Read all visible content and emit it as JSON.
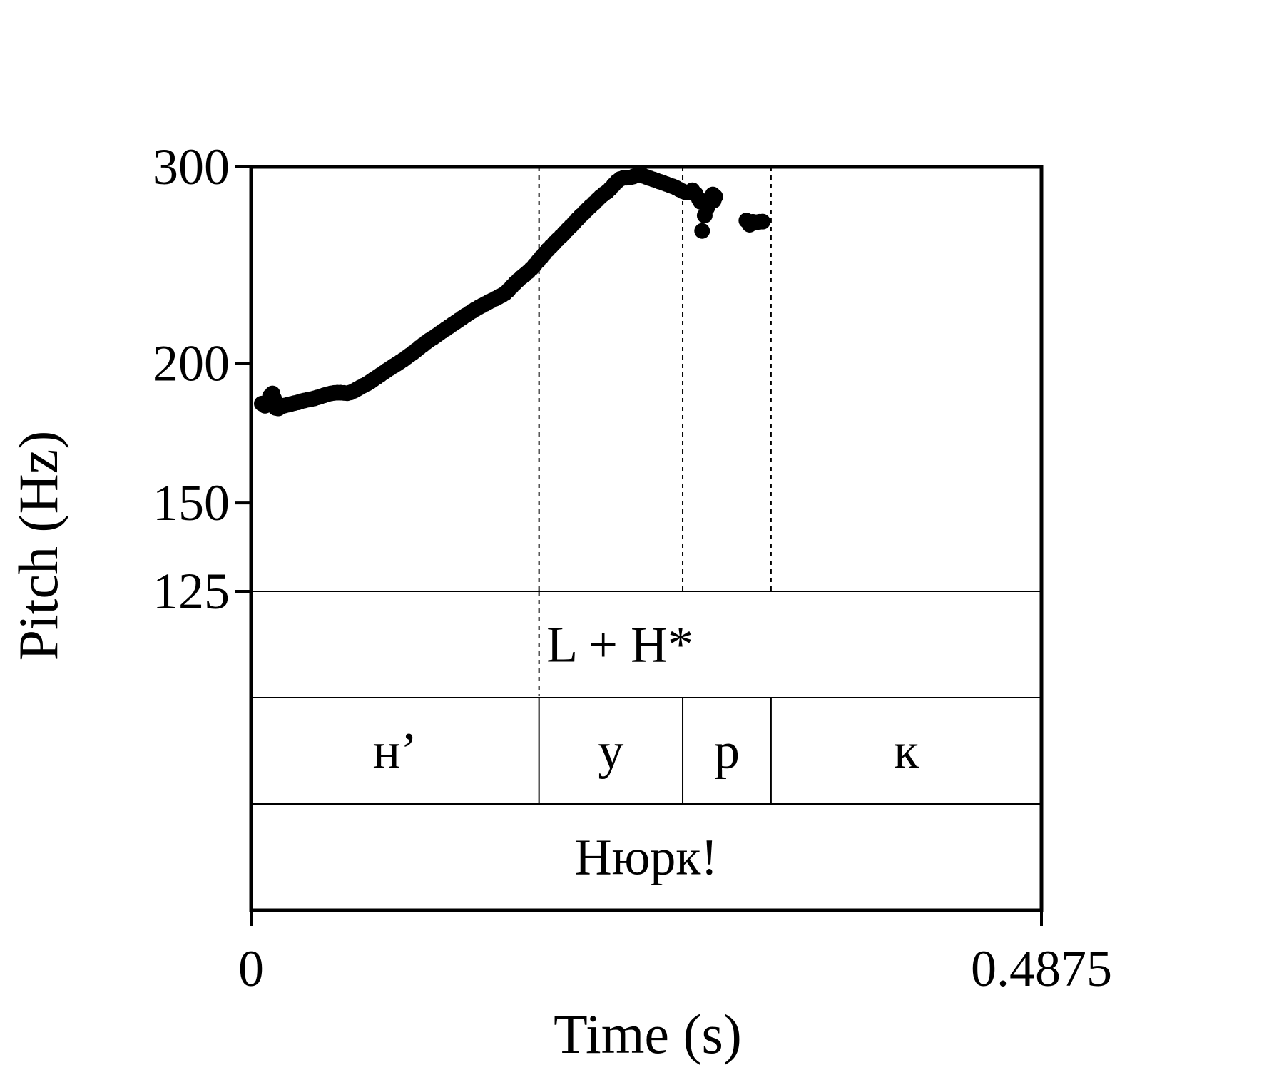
{
  "chart_data": {
    "type": "scatter",
    "title": "",
    "xlabel": "Time (s)",
    "ylabel": "Pitch (Hz)",
    "xlim": [
      0,
      0.4875
    ],
    "ylim": [
      125,
      300
    ],
    "y_scale": "log",
    "x_tick_labels": [
      "0",
      "0.4875"
    ],
    "y_ticks": [
      {
        "value": 300,
        "label": "300"
      },
      {
        "value": 200,
        "label": "200"
      },
      {
        "value": 150,
        "label": "150"
      },
      {
        "value": 125,
        "label": "125"
      }
    ],
    "boundaries": [
      0.1776,
      0.2662,
      0.3207
    ],
    "series": [
      {
        "points": [
          [
            0.0066,
            184.1
          ],
          [
            0.0086,
            183.3
          ],
          [
            0.0101,
            183.6
          ],
          [
            0.0117,
            187.0
          ],
          [
            0.0132,
            188.0
          ],
          [
            0.0142,
            186.0
          ],
          [
            0.0152,
            182.5
          ],
          [
            0.0168,
            182.3
          ],
          [
            0.0188,
            183.0
          ],
          [
            0.0208,
            183.4
          ],
          [
            0.0228,
            183.7
          ],
          [
            0.0248,
            184.0
          ],
          [
            0.0268,
            184.3
          ],
          [
            0.0289,
            184.6
          ],
          [
            0.0309,
            185.0
          ],
          [
            0.0329,
            185.3
          ],
          [
            0.035,
            185.6
          ],
          [
            0.037,
            185.8
          ],
          [
            0.039,
            186.1
          ],
          [
            0.041,
            186.5
          ],
          [
            0.0431,
            186.9
          ],
          [
            0.0451,
            187.3
          ],
          [
            0.0471,
            187.7
          ],
          [
            0.0492,
            188.0
          ],
          [
            0.0512,
            188.2
          ],
          [
            0.0532,
            188.3
          ],
          [
            0.0552,
            188.3
          ],
          [
            0.0573,
            188.2
          ],
          [
            0.0593,
            188.1
          ],
          [
            0.0613,
            188.4
          ],
          [
            0.0634,
            189.0
          ],
          [
            0.0654,
            189.7
          ],
          [
            0.0674,
            190.4
          ],
          [
            0.0694,
            191.1
          ],
          [
            0.0715,
            191.8
          ],
          [
            0.0735,
            192.6
          ],
          [
            0.0755,
            193.5
          ],
          [
            0.0776,
            194.4
          ],
          [
            0.0796,
            195.3
          ],
          [
            0.0816,
            196.2
          ],
          [
            0.0836,
            197.1
          ],
          [
            0.0857,
            198.0
          ],
          [
            0.0877,
            198.9
          ],
          [
            0.0897,
            199.7
          ],
          [
            0.0918,
            200.6
          ],
          [
            0.0938,
            201.5
          ],
          [
            0.0958,
            202.5
          ],
          [
            0.0979,
            203.5
          ],
          [
            0.0999,
            204.5
          ],
          [
            0.1019,
            205.6
          ],
          [
            0.1039,
            206.7
          ],
          [
            0.106,
            207.8
          ],
          [
            0.108,
            208.9
          ],
          [
            0.11,
            209.9
          ],
          [
            0.1121,
            210.8
          ],
          [
            0.1141,
            211.8
          ],
          [
            0.1161,
            212.8
          ],
          [
            0.1181,
            213.8
          ],
          [
            0.1202,
            214.8
          ],
          [
            0.1222,
            215.8
          ],
          [
            0.1242,
            216.8
          ],
          [
            0.1263,
            217.8
          ],
          [
            0.1283,
            218.8
          ],
          [
            0.1303,
            219.8
          ],
          [
            0.1323,
            220.8
          ],
          [
            0.1344,
            221.8
          ],
          [
            0.1364,
            222.8
          ],
          [
            0.1384,
            223.7
          ],
          [
            0.1405,
            224.6
          ],
          [
            0.1425,
            225.4
          ],
          [
            0.1445,
            226.2
          ],
          [
            0.1465,
            227.0
          ],
          [
            0.1486,
            227.8
          ],
          [
            0.1506,
            228.6
          ],
          [
            0.1526,
            229.4
          ],
          [
            0.1547,
            230.2
          ],
          [
            0.1567,
            231.2
          ],
          [
            0.1587,
            232.6
          ],
          [
            0.1607,
            234.3
          ],
          [
            0.1628,
            236.0
          ],
          [
            0.1648,
            237.5
          ],
          [
            0.1668,
            238.9
          ],
          [
            0.1689,
            240.2
          ],
          [
            0.1709,
            241.6
          ],
          [
            0.1729,
            243.2
          ],
          [
            0.1749,
            245.0
          ],
          [
            0.177,
            247.0
          ],
          [
            0.179,
            249.0
          ],
          [
            0.181,
            251.0
          ],
          [
            0.1831,
            252.9
          ],
          [
            0.1851,
            254.7
          ],
          [
            0.1871,
            256.5
          ],
          [
            0.1891,
            258.2
          ],
          [
            0.1912,
            260.0
          ],
          [
            0.1932,
            261.8
          ],
          [
            0.1952,
            263.6
          ],
          [
            0.1973,
            265.5
          ],
          [
            0.1993,
            267.4
          ],
          [
            0.2013,
            269.3
          ],
          [
            0.2033,
            271.2
          ],
          [
            0.2054,
            273.0
          ],
          [
            0.2074,
            274.8
          ],
          [
            0.2094,
            276.6
          ],
          [
            0.2115,
            278.4
          ],
          [
            0.2135,
            280.2
          ],
          [
            0.2155,
            282.0
          ],
          [
            0.2175,
            283.6
          ],
          [
            0.2196,
            285.0
          ],
          [
            0.2216,
            286.8
          ],
          [
            0.2236,
            289.0
          ],
          [
            0.2257,
            291.1
          ],
          [
            0.2277,
            292.6
          ],
          [
            0.2297,
            293.3
          ],
          [
            0.2317,
            293.4
          ],
          [
            0.2338,
            293.5
          ],
          [
            0.2358,
            294.1
          ],
          [
            0.2378,
            294.7
          ],
          [
            0.2399,
            294.9
          ],
          [
            0.2419,
            294.5
          ],
          [
            0.2439,
            293.8
          ],
          [
            0.2459,
            293.1
          ],
          [
            0.248,
            292.4
          ],
          [
            0.25,
            291.7
          ],
          [
            0.252,
            291.0
          ],
          [
            0.2541,
            290.3
          ],
          [
            0.2561,
            289.6
          ],
          [
            0.2581,
            288.9
          ],
          [
            0.2601,
            288.2
          ],
          [
            0.2622,
            287.3
          ],
          [
            0.2642,
            286.3
          ],
          [
            0.2662,
            285.3
          ],
          [
            0.2682,
            284.6
          ],
          [
            0.2702,
            284.6
          ],
          [
            0.2722,
            285.9
          ],
          [
            0.2742,
            283.8
          ],
          [
            0.2762,
            280.8
          ],
          [
            0.2772,
            279.2
          ],
          [
            0.2782,
            262.9
          ],
          [
            0.2798,
            271.4
          ],
          [
            0.2813,
            275.7
          ],
          [
            0.2823,
            278.5
          ],
          [
            0.2838,
            281.4
          ],
          [
            0.2848,
            283.4
          ],
          [
            0.2853,
            279.8
          ],
          [
            0.2863,
            282.1
          ],
          [
            0.3055,
            268.6
          ],
          [
            0.3075,
            266.3
          ],
          [
            0.3095,
            267.9
          ],
          [
            0.3115,
            267.6
          ],
          [
            0.3135,
            267.9
          ],
          [
            0.3155,
            268.0
          ]
        ]
      }
    ],
    "tiers": [
      {
        "name": "tones",
        "intervals": [
          {
            "start": 0.0,
            "end": 0.4875,
            "label": "L + H*"
          }
        ]
      },
      {
        "name": "segments",
        "intervals": [
          {
            "start": 0.0,
            "end": 0.1776,
            "label": "н’"
          },
          {
            "start": 0.1776,
            "end": 0.2662,
            "label": "у"
          },
          {
            "start": 0.2662,
            "end": 0.3207,
            "label": "р"
          },
          {
            "start": 0.3207,
            "end": 0.4875,
            "label": "к"
          }
        ]
      },
      {
        "name": "word",
        "intervals": [
          {
            "start": 0.0,
            "end": 0.4875,
            "label": "Нюрк!"
          }
        ]
      }
    ],
    "grid": false,
    "legend": "none"
  }
}
